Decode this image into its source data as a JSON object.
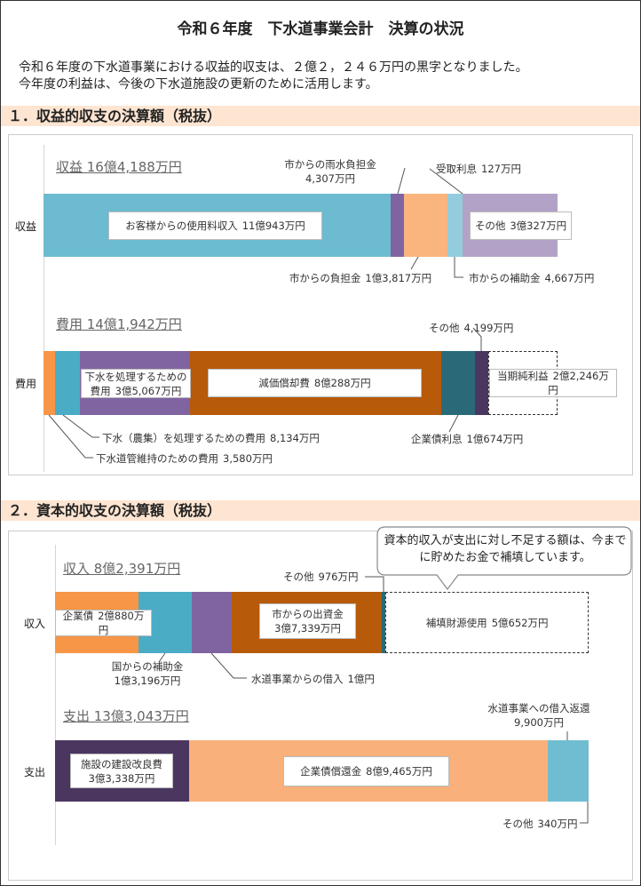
{
  "title": "令和６年度　下水道事業会計　決算の状況",
  "intro": [
    "令和６年度の下水道事業における収益的収支は、２億２，２４６万円の黒字となりました。",
    "今年度の利益は、今後の下水道施設の更新のために活用します。"
  ],
  "sections": [
    {
      "heading": "１．収益的収支の決算額（税抜）",
      "bars": [
        {
          "label": "収益",
          "heading": "収益 16億4,188万円",
          "segments": [
            {
              "name": "お客様からの使用料収入",
              "value": 110943,
              "value_label": "11億943万円",
              "color": "#6cbbd0"
            },
            {
              "name": "市からの雨水負担金",
              "value": 4307,
              "value_label": "4,307万円",
              "color": "#8064a2"
            },
            {
              "name": "市からの負担金",
              "value": 13817,
              "value_label": "1億3,817万円",
              "color": "#fab47e"
            },
            {
              "name": "市からの補助金",
              "value": 4667,
              "value_label": "4,667万円",
              "color": "#93cddd"
            },
            {
              "name": "受取利息",
              "value": 127,
              "value_label": "127万円",
              "color": "#4bacc6"
            },
            {
              "name": "その他",
              "value": 30327,
              "value_label": "3億327万円",
              "color": "#b3a2c7"
            }
          ]
        },
        {
          "label": "費用",
          "heading": "費用 14億1,942万円",
          "segments": [
            {
              "name": "下水道管維持のための費用",
              "value": 3580,
              "value_label": "3,580万円",
              "color": "#f79646"
            },
            {
              "name": "下水（農集）を処理するための費用",
              "value": 8134,
              "value_label": "8,134万円",
              "color": "#4bacc6"
            },
            {
              "name": "下水を処理するための費用",
              "value": 35067,
              "value_label": "3億5,067万円",
              "color": "#8064a2"
            },
            {
              "name": "減価償却費",
              "value": 80288,
              "value_label": "8億288万円",
              "color": "#b75a09"
            },
            {
              "name": "企業債利息",
              "value": 10674,
              "value_label": "1億674万円",
              "color": "#2a6a78"
            },
            {
              "name": "その他",
              "value": 4199,
              "value_label": "4,199万円",
              "color": "#4b3660"
            }
          ],
          "balance": {
            "name": "当期純利益",
            "value": 22246,
            "value_label": "2億2,246万円"
          }
        }
      ]
    },
    {
      "heading": "２．資本的収支の決算額（税抜）",
      "note": "資本的収入が支出に対し不足する額は、今までに貯めたお金で補填しています。",
      "bars": [
        {
          "label": "収入",
          "heading": "収入 8億2,391万円",
          "segments": [
            {
              "name": "企業債",
              "value": 20880,
              "value_label": "2億880万円",
              "color": "#f79646"
            },
            {
              "name": "国からの補助金",
              "value": 13196,
              "value_label": "1億3,196万円",
              "color": "#4bacc6"
            },
            {
              "name": "水道事業からの借入",
              "value": 10000,
              "value_label": "1億円",
              "color": "#8064a2"
            },
            {
              "name": "市からの出資金",
              "value": 37339,
              "value_label": "3億7,339万円",
              "color": "#b75a09"
            },
            {
              "name": "その他",
              "value": 976,
              "value_label": "976万円",
              "color": "#2a6a78"
            }
          ],
          "balance": {
            "name": "補填財源使用",
            "value": 50652,
            "value_label": "5億652万円"
          }
        },
        {
          "label": "支出",
          "heading": "支出 13億3,043万円",
          "segments": [
            {
              "name": "施設の建設改良費",
              "value": 33338,
              "value_label": "3億3,338万円",
              "color": "#4b3660"
            },
            {
              "name": "企業債償還金",
              "value": 89465,
              "value_label": "8億9,465万円",
              "color": "#fab07b"
            },
            {
              "name": "水道事業への借入返還",
              "value": 9900,
              "value_label": "9,900万円",
              "color": "#6fbdd1"
            },
            {
              "name": "その他",
              "value": 340,
              "value_label": "340万円",
              "color": "#7fb7c9"
            }
          ]
        }
      ]
    }
  ]
}
